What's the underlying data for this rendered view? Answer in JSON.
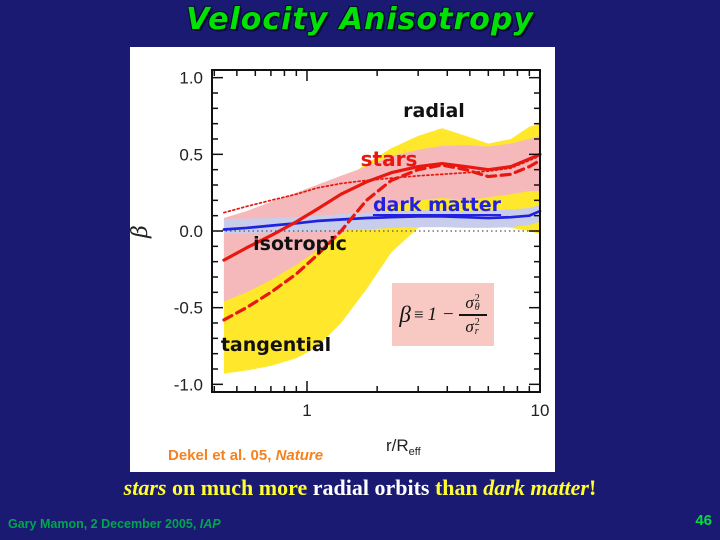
{
  "title": "Velocity Anisotropy",
  "chart_data": {
    "type": "line",
    "title": "",
    "xlabel": "r/R_eff",
    "xlabel_parts": {
      "main": "r/R",
      "sub": "eff"
    },
    "ylabel": "β",
    "x_scale": "log",
    "xlim": [
      0.39,
      10
    ],
    "ylim": [
      -1.05,
      1.05
    ],
    "grid": false,
    "xtick_values": [
      1,
      10
    ],
    "xtick_labels": [
      "1",
      "10"
    ],
    "xtick_minor": [
      0.4,
      0.5,
      0.6,
      0.7,
      0.8,
      0.9,
      2,
      3,
      4,
      5,
      6,
      7,
      8,
      9
    ],
    "ytick_values": [
      1.0,
      0.5,
      0.0,
      -0.5,
      -1.0
    ],
    "ytick_labels": [
      "1.0",
      "0.5",
      "0.0",
      "-0.5",
      "-1.0"
    ],
    "ytick_minor_step": 0.1,
    "x": [
      0.44,
      0.55,
      0.7,
      0.9,
      1.1,
      1.4,
      1.8,
      2.3,
      3.0,
      3.8,
      4.8,
      6.0,
      7.5,
      9.0,
      10.0
    ],
    "series": [
      {
        "name": "stars dotted example",
        "style": "dotted",
        "color": "#e8170f",
        "width": 1.7,
        "values": [
          0.12,
          0.16,
          0.2,
          0.24,
          0.28,
          0.31,
          0.33,
          0.345,
          0.36,
          0.37,
          0.38,
          0.39,
          0.41,
          0.46,
          0.49
        ]
      },
      {
        "name": "dark matter",
        "style": "solid",
        "color": "#2121de",
        "width": 2.7,
        "values": [
          0.01,
          0.02,
          0.035,
          0.05,
          0.065,
          0.075,
          0.085,
          0.09,
          0.095,
          0.095,
          0.09,
          0.085,
          0.09,
          0.1,
          0.13
        ]
      },
      {
        "name": "stars dashed example",
        "style": "dashed",
        "color": "#e8170f",
        "width": 3.2,
        "values": [
          -0.58,
          -0.5,
          -0.4,
          -0.28,
          -0.16,
          0.0,
          0.2,
          0.33,
          0.4,
          0.43,
          0.4,
          0.355,
          0.37,
          0.42,
          0.46
        ]
      },
      {
        "name": "stars median",
        "style": "solid",
        "color": "#e8170f",
        "width": 3.2,
        "values": [
          -0.19,
          -0.11,
          -0.03,
          0.06,
          0.14,
          0.24,
          0.32,
          0.38,
          0.42,
          0.44,
          0.42,
          0.4,
          0.42,
          0.47,
          0.5
        ]
      }
    ],
    "bands": [
      {
        "name": "full range (yellow)",
        "color": "#ffe72b",
        "upper": [
          0.0,
          0.04,
          0.09,
          0.15,
          0.22,
          0.32,
          0.44,
          0.54,
          0.62,
          0.67,
          0.62,
          0.57,
          0.6,
          0.68,
          0.7
        ],
        "lower": [
          -0.93,
          -0.91,
          -0.88,
          -0.83,
          -0.76,
          -0.6,
          -0.38,
          -0.14,
          0.02,
          0.06,
          0.07,
          0.04,
          0.02,
          0.0,
          -0.02
        ]
      },
      {
        "name": "stars scatter (pink)",
        "color": "#f5b9bc",
        "upper": [
          0.085,
          0.13,
          0.19,
          0.25,
          0.3,
          0.36,
          0.42,
          0.49,
          0.53,
          0.555,
          0.56,
          0.55,
          0.57,
          0.6,
          0.62
        ],
        "lower": [
          -0.46,
          -0.4,
          -0.32,
          -0.22,
          -0.13,
          -0.02,
          0.09,
          0.16,
          0.2,
          0.215,
          0.2,
          0.22,
          0.24,
          0.26,
          0.26
        ]
      },
      {
        "name": "dark matter scatter (lavender)",
        "color": "#c8cdeb",
        "upper": [
          0.075,
          0.08,
          0.085,
          0.09,
          0.1,
          0.11,
          0.12,
          0.13,
          0.135,
          0.135,
          0.13,
          0.135,
          0.14,
          0.15,
          0.17
        ],
        "lower": [
          -0.02,
          -0.015,
          -0.01,
          -0.005,
          0.0,
          0.005,
          0.01,
          0.02,
          0.025,
          0.025,
          0.02,
          0.02,
          0.025,
          0.04,
          0.06
        ]
      }
    ],
    "reference_line": {
      "y": 0.0,
      "style": "dotted",
      "label": "isotropic"
    },
    "annotations": {
      "radial": "radial",
      "stars": "stars",
      "dark_matter": "dark matter",
      "isotropic": "isotropic",
      "tangential": "tangential"
    }
  },
  "formula": {
    "beta": "β",
    "equiv": "≡",
    "one_minus": "1 −",
    "sigma": "σ",
    "sup": "2",
    "sub_theta": "θ",
    "sub_r": "r"
  },
  "citation": {
    "text": "Dekel et al. 05, ",
    "source": "Nature"
  },
  "caption": {
    "parts": [
      {
        "text": "stars",
        "color": "#ffff2e",
        "style": "italic"
      },
      {
        "text": " on much more ",
        "color": "#ffff2e",
        "style": "normal"
      },
      {
        "text": "radial orbits",
        "color": "#ffffff",
        "style": "normal"
      },
      {
        "text": " than ",
        "color": "#ffff2e",
        "style": "normal"
      },
      {
        "text": "dark matter",
        "color": "#ffff2e",
        "style": "italic"
      },
      {
        "text": "!",
        "color": "#ffff2e",
        "style": "normal"
      }
    ]
  },
  "footer": {
    "credit": "Gary Mamon, 2 December 2005, ",
    "org": "IAP"
  },
  "page_number": "46",
  "colors": {
    "background": "#1a1a72",
    "title_green": "#00e104",
    "caption_yellow": "#ffff2e",
    "caption_white": "#ffffff",
    "footer_green": "#00a54f",
    "page_green": "#00dc3c",
    "citation_orange": "#f5821f",
    "stars_red": "#e8170f",
    "dark_matter_blue": "#2121de",
    "band_yellow": "#ffe72b",
    "band_pink": "#f5b9bc",
    "band_lavender": "#c8cdeb",
    "formula_bg": "#f8c9c2"
  }
}
